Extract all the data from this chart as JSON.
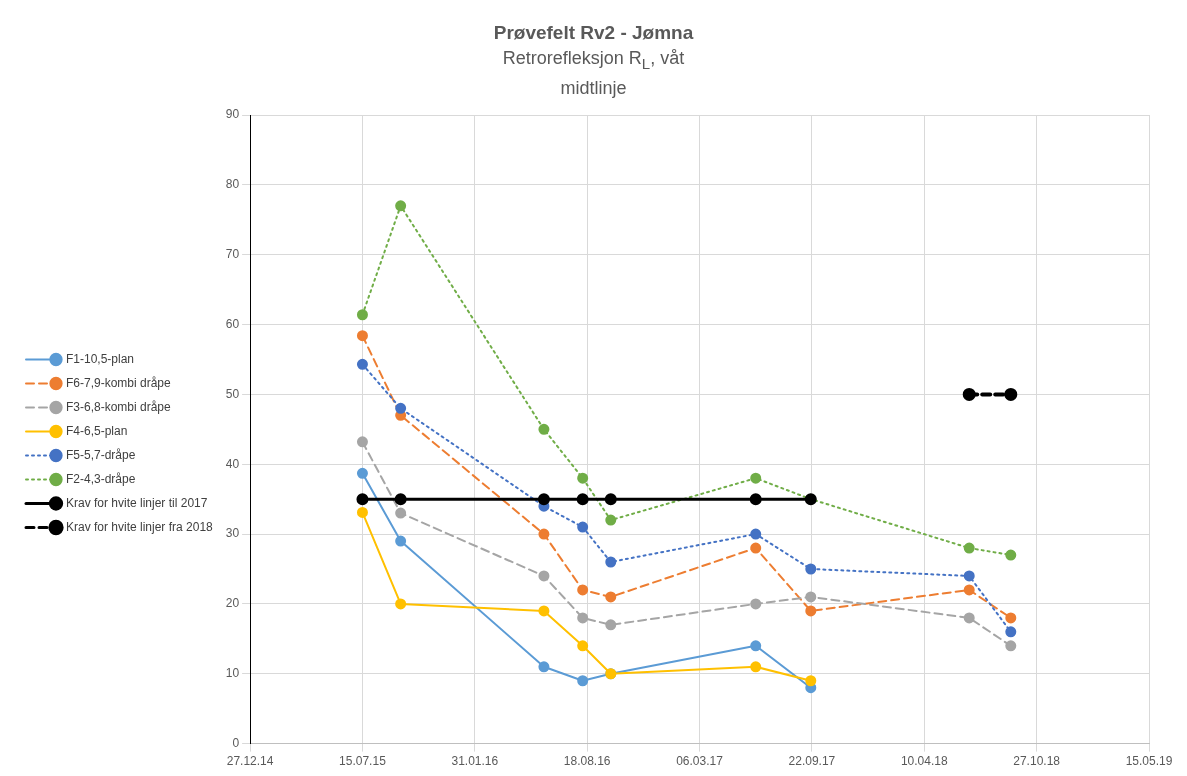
{
  "chart_data": {
    "type": "line",
    "title": "Prøvefelt Rv2 - Jømna",
    "subtitle": "Retrorefleksjon R$_{L}$, våt midtlinje",
    "x": [
      "2015-07-15",
      "2015-09-21",
      "2016-06-02",
      "2016-08-10",
      "2016-09-29",
      "2017-06-14",
      "2017-09-20",
      "2018-06-29",
      "2018-09-11"
    ],
    "xlim": [
      "2014-12-27",
      "2019-05-15"
    ],
    "xticks": [
      {
        "value": "2014-12-27",
        "label": "27.12.14"
      },
      {
        "value": "2015-07-15",
        "label": "15.07.15"
      },
      {
        "value": "2016-01-31",
        "label": "31.01.16"
      },
      {
        "value": "2016-08-18",
        "label": "18.08.16"
      },
      {
        "value": "2017-03-06",
        "label": "06.03.17"
      },
      {
        "value": "2017-09-22",
        "label": "22.09.17"
      },
      {
        "value": "2018-04-10",
        "label": "10.04.18"
      },
      {
        "value": "2018-10-27",
        "label": "27.10.18"
      },
      {
        "value": "2019-05-15",
        "label": "15.05.19"
      }
    ],
    "ylim": [
      0,
      90
    ],
    "yticks": [
      0,
      10,
      20,
      30,
      40,
      50,
      60,
      70,
      80,
      90
    ],
    "grid": true,
    "legend": "left",
    "marker": "circle",
    "series": [
      {
        "name": "F1-10,5-plan",
        "color": "#5b9bd5",
        "line_style": "solid",
        "values": [
          38.7,
          29,
          11,
          9,
          10,
          14,
          8,
          null,
          null
        ]
      },
      {
        "name": "F6-7,9-kombi dråpe",
        "color": "#ed7d31",
        "line_style": "dashed",
        "values": [
          58.4,
          47,
          30,
          22,
          21,
          28,
          19,
          22,
          18
        ]
      },
      {
        "name": "F3-6,8-kombi dråpe",
        "color": "#a5a5a5",
        "line_style": "dashed",
        "values": [
          43.2,
          33,
          24,
          18,
          17,
          20,
          21,
          18,
          14
        ]
      },
      {
        "name": "F4-6,5-plan",
        "color": "#ffc000",
        "line_style": "solid",
        "values": [
          33.1,
          20,
          19,
          14,
          10,
          11,
          9,
          null,
          null
        ]
      },
      {
        "name": "F5-5,7-dråpe",
        "color": "#4472c4",
        "line_style": "dotted",
        "values": [
          54.3,
          48,
          34,
          31,
          26,
          30,
          25,
          24,
          16
        ]
      },
      {
        "name": "F2-4,3-dråpe",
        "color": "#70ad47",
        "line_style": "dotted",
        "values": [
          61.4,
          77,
          45,
          38,
          32,
          38,
          35,
          28,
          27
        ]
      },
      {
        "name": "Krav for hvite linjer til 2017",
        "color": "#000000",
        "line_style": "solid",
        "values": [
          35,
          35,
          35,
          35,
          35,
          35,
          35,
          null,
          null
        ]
      },
      {
        "name": "Krav for hvite linjer fra 2018",
        "color": "#000000",
        "line_style": "dashed",
        "x": [
          "2018-06-29",
          "2018-09-11"
        ],
        "values": [
          50,
          50
        ]
      }
    ]
  }
}
